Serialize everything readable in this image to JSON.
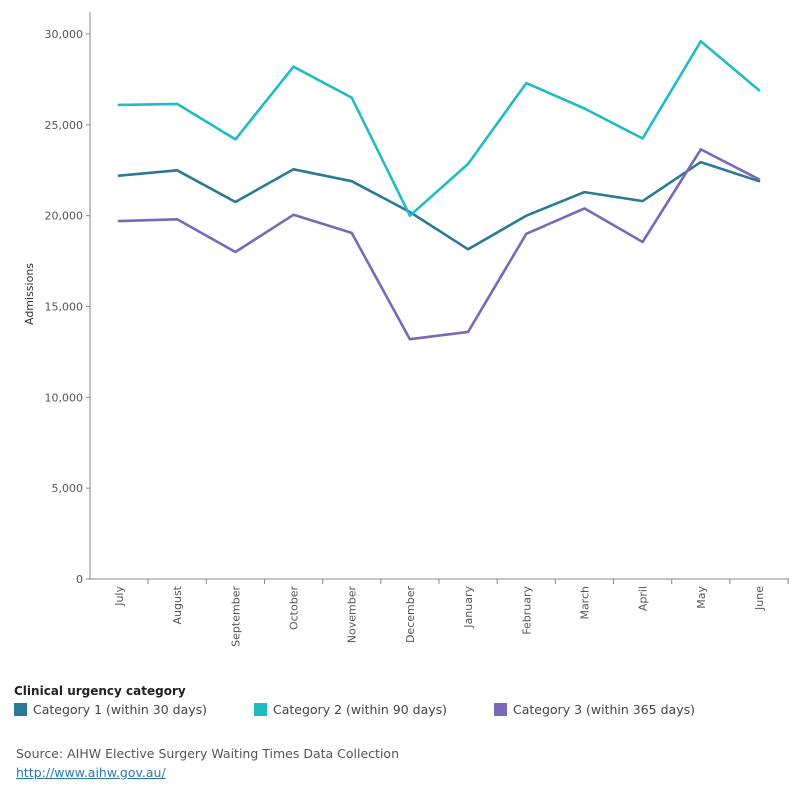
{
  "chart_data": {
    "type": "line",
    "ylabel": "Admissions",
    "xlabel": "",
    "ylim": [
      0,
      30000
    ],
    "yticks": [
      0,
      5000,
      10000,
      15000,
      20000,
      25000,
      30000
    ],
    "ytick_labels": [
      "0",
      "5,000",
      "10,000",
      "15,000",
      "20,000",
      "25,000",
      "30,000"
    ],
    "grid": false,
    "categories": [
      "July",
      "August",
      "September",
      "October",
      "November",
      "December",
      "January",
      "February",
      "March",
      "April",
      "May",
      "June"
    ],
    "series": [
      {
        "name": "Category 1 (within 30 days)",
        "color": "#2a7a95",
        "values": [
          22200,
          22500,
          20750,
          22550,
          21900,
          20200,
          18150,
          20000,
          21300,
          20800,
          22950,
          21900
        ]
      },
      {
        "name": "Category 2 (within 90 days)",
        "color": "#1fbcc4",
        "values": [
          26100,
          26150,
          24200,
          28200,
          26500,
          20000,
          22850,
          27300,
          25900,
          24250,
          29600,
          26900
        ]
      },
      {
        "name": "Category 3 (within 365 days)",
        "color": "#7b68b6",
        "values": [
          19700,
          19800,
          18000,
          20050,
          19050,
          13200,
          13600,
          19000,
          20400,
          18550,
          23650,
          22000
        ]
      }
    ],
    "legend_position": "bottom-left"
  },
  "legend": {
    "title": "Clinical urgency category"
  },
  "source": {
    "text": "Source: AIHW Elective Surgery Waiting Times Data Collection",
    "link": "http://www.aihw.gov.au/"
  }
}
